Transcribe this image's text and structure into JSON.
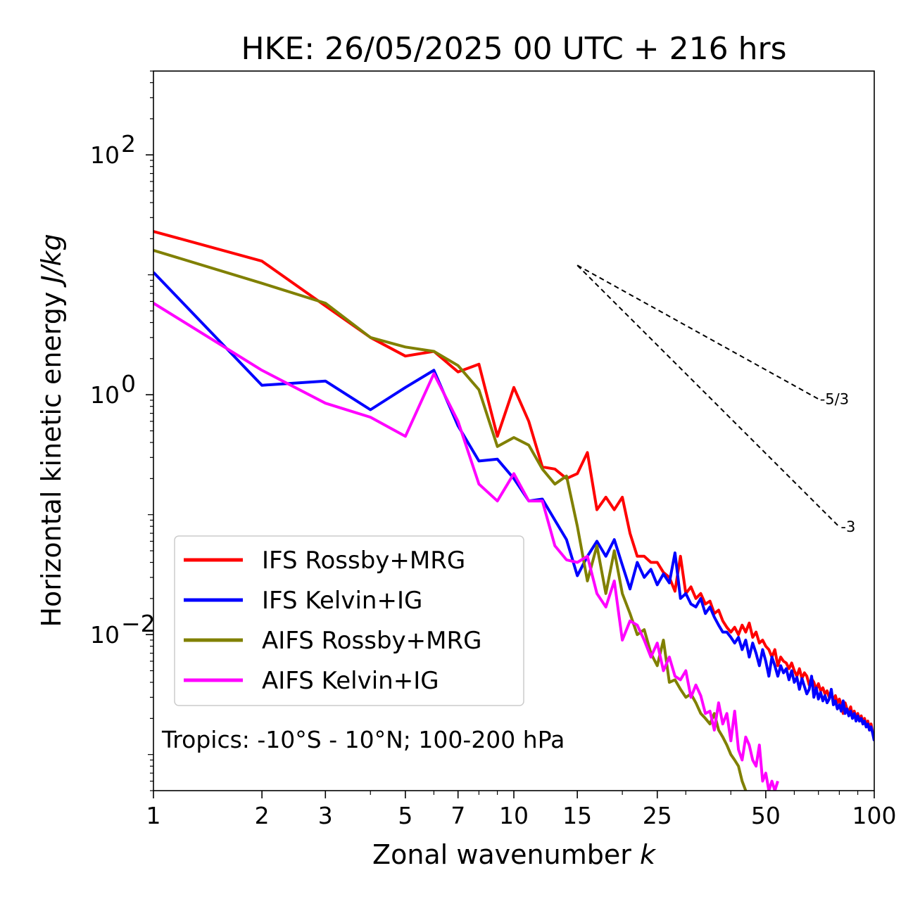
{
  "chart_data": {
    "type": "line",
    "title": "HKE: 26/05/2025 00 UTC + 216 hrs",
    "xlabel": "Zonal wavenumber",
    "xlabel_italic": "k",
    "ylabel": "Horizontal kinetic energy",
    "ylabel_italic": "J/kg",
    "xscale": "log",
    "yscale": "log",
    "xlim": [
      1,
      100
    ],
    "ylim": [
      0.0005,
      500
    ],
    "x_ticks": [
      {
        "value": 1,
        "label": "1"
      },
      {
        "value": 2,
        "label": "2"
      },
      {
        "value": 3,
        "label": "3"
      },
      {
        "value": 5,
        "label": "5"
      },
      {
        "value": 7,
        "label": "7"
      },
      {
        "value": 10,
        "label": "10"
      },
      {
        "value": 15,
        "label": "15"
      },
      {
        "value": 25,
        "label": "25"
      },
      {
        "value": 50,
        "label": "50"
      },
      {
        "value": 100,
        "label": "100"
      }
    ],
    "y_ticks": [
      {
        "value": 0.01,
        "base": "10",
        "exp": "−2"
      },
      {
        "value": 1,
        "base": "10",
        "exp": "0"
      },
      {
        "value": 100,
        "base": "10",
        "exp": "2"
      }
    ],
    "grid": false,
    "legend_position": "lower-left",
    "annotation": "Tropics: -10°S - 10°N; 100-200 hPa",
    "reference_lines": [
      {
        "label": "-5/3",
        "slope": -1.6667,
        "x_start": 15,
        "y_start": 12.0,
        "x_end": 70
      },
      {
        "label": "-3",
        "slope": -3,
        "x_start": 15,
        "y_start": 12.0,
        "x_end": 80
      }
    ],
    "series": [
      {
        "name": "IFS Rossby+MRG",
        "color": "#ff0000",
        "x": [
          1,
          2,
          3,
          4,
          5,
          6,
          7,
          8,
          9,
          10,
          11,
          12,
          13,
          14,
          15,
          16,
          17,
          18,
          19,
          20,
          21,
          22,
          23,
          24,
          25,
          26,
          27,
          28,
          29,
          30,
          31,
          32,
          33,
          34,
          35,
          36,
          37,
          38,
          39,
          40,
          41,
          42,
          43,
          44,
          45,
          46,
          47,
          48,
          49,
          50,
          51,
          52,
          53,
          54,
          55,
          56,
          57,
          58,
          59,
          60,
          61,
          62,
          63,
          64,
          65,
          66,
          67,
          68,
          69,
          70,
          71,
          72,
          73,
          74,
          75,
          76,
          77,
          78,
          79,
          80,
          81,
          82,
          83,
          84,
          85,
          86,
          87,
          88,
          89,
          90,
          91,
          92,
          93,
          94,
          95,
          96,
          97,
          98,
          99,
          100
        ],
        "y": [
          23,
          13,
          5.5,
          3.0,
          2.1,
          2.3,
          1.55,
          1.8,
          0.45,
          1.15,
          0.6,
          0.25,
          0.24,
          0.2,
          0.22,
          0.33,
          0.11,
          0.14,
          0.11,
          0.14,
          0.07,
          0.045,
          0.045,
          0.04,
          0.04,
          0.033,
          0.03,
          0.023,
          0.045,
          0.022,
          0.025,
          0.02,
          0.022,
          0.018,
          0.019,
          0.015,
          0.016,
          0.013,
          0.0115,
          0.0105,
          0.0115,
          0.01,
          0.012,
          0.0105,
          0.0125,
          0.0095,
          0.0105,
          0.0085,
          0.009,
          0.008,
          0.0075,
          0.0065,
          0.0075,
          0.0055,
          0.0065,
          0.006,
          0.0058,
          0.0052,
          0.0058,
          0.005,
          0.0045,
          0.0052,
          0.0043,
          0.0048,
          0.0045,
          0.0038,
          0.0043,
          0.004,
          0.0035,
          0.0039,
          0.0034,
          0.0036,
          0.0032,
          0.0034,
          0.003,
          0.0032,
          0.0028,
          0.0031,
          0.0027,
          0.0029,
          0.0026,
          0.0022,
          0.0027,
          0.0024,
          0.0023,
          0.0025,
          0.0021,
          0.0023,
          0.002,
          0.0022,
          0.0019,
          0.0021,
          0.0018,
          0.002,
          0.0017,
          0.0019,
          0.0016,
          0.0018,
          0.0015,
          0.0014
        ]
      },
      {
        "name": "IFS Kelvin+IG",
        "color": "#0000ff",
        "x": [
          1,
          2,
          3,
          4,
          5,
          6,
          7,
          8,
          9,
          10,
          11,
          12,
          13,
          14,
          15,
          16,
          17,
          18,
          19,
          20,
          21,
          22,
          23,
          24,
          25,
          26,
          27,
          28,
          29,
          30,
          31,
          32,
          33,
          34,
          35,
          36,
          37,
          38,
          39,
          40,
          41,
          42,
          43,
          44,
          45,
          46,
          47,
          48,
          49,
          50,
          51,
          52,
          53,
          54,
          55,
          56,
          57,
          58,
          59,
          60,
          61,
          62,
          63,
          64,
          65,
          66,
          67,
          68,
          69,
          70,
          71,
          72,
          73,
          74,
          75,
          76,
          77,
          78,
          79,
          80,
          81,
          82,
          83,
          84,
          85,
          86,
          87,
          88,
          89,
          90,
          91,
          92,
          93,
          94,
          95,
          96,
          97,
          98,
          99,
          100
        ],
        "y": [
          10.5,
          1.2,
          1.3,
          0.75,
          1.15,
          1.6,
          0.55,
          0.28,
          0.29,
          0.2,
          0.13,
          0.135,
          0.09,
          0.062,
          0.031,
          0.045,
          0.06,
          0.045,
          0.062,
          0.038,
          0.024,
          0.04,
          0.03,
          0.035,
          0.026,
          0.032,
          0.027,
          0.048,
          0.02,
          0.022,
          0.018,
          0.017,
          0.02,
          0.015,
          0.017,
          0.014,
          0.012,
          0.0105,
          0.0105,
          0.0095,
          0.0085,
          0.0095,
          0.0075,
          0.009,
          0.0065,
          0.0085,
          0.007,
          0.0055,
          0.0075,
          0.006,
          0.0045,
          0.0065,
          0.0055,
          0.0045,
          0.0055,
          0.0048,
          0.0052,
          0.0042,
          0.005,
          0.004,
          0.0044,
          0.0035,
          0.0043,
          0.0037,
          0.0032,
          0.0035,
          0.0045,
          0.003,
          0.0036,
          0.0029,
          0.0033,
          0.0028,
          0.0031,
          0.0027,
          0.0029,
          0.0035,
          0.0026,
          0.0028,
          0.0024,
          0.0026,
          0.0023,
          0.0028,
          0.0022,
          0.0024,
          0.0021,
          0.0023,
          0.002,
          0.0022,
          0.0019,
          0.0021,
          0.0019,
          0.002,
          0.0018,
          0.0019,
          0.0017,
          0.0018,
          0.0016,
          0.0017,
          0.0015,
          0.0013
        ]
      },
      {
        "name": "AIFS Rossby+MRG",
        "color": "#808000",
        "x": [
          1,
          2,
          3,
          4,
          5,
          6,
          7,
          8,
          9,
          10,
          11,
          12,
          13,
          14,
          15,
          16,
          17,
          18,
          19,
          20,
          21,
          22,
          23,
          24,
          25,
          26,
          27,
          28,
          29,
          30,
          31,
          32,
          33,
          34,
          35,
          36,
          37,
          38,
          39,
          40,
          41,
          42,
          43,
          44
        ],
        "y": [
          16,
          8.5,
          5.8,
          3.0,
          2.5,
          2.3,
          1.75,
          1.1,
          0.37,
          0.44,
          0.38,
          0.24,
          0.18,
          0.21,
          0.08,
          0.028,
          0.055,
          0.022,
          0.05,
          0.022,
          0.015,
          0.01,
          0.011,
          0.007,
          0.0055,
          0.009,
          0.004,
          0.0042,
          0.0035,
          0.003,
          0.0032,
          0.0027,
          0.0022,
          0.002,
          0.0018,
          0.0022,
          0.0016,
          0.0014,
          0.0012,
          0.001,
          0.0009,
          0.0008,
          0.0006,
          0.0005
        ]
      },
      {
        "name": "AIFS Kelvin+IG",
        "color": "#ff00ff",
        "x": [
          1,
          2,
          3,
          4,
          5,
          6,
          7,
          8,
          9,
          10,
          11,
          12,
          13,
          14,
          15,
          16,
          17,
          18,
          19,
          20,
          21,
          22,
          23,
          24,
          25,
          26,
          27,
          28,
          29,
          30,
          31,
          32,
          33,
          34,
          35,
          36,
          37,
          38,
          39,
          40,
          41,
          42,
          43,
          44,
          45,
          46,
          47,
          48,
          49,
          50,
          51,
          52,
          53,
          54
        ],
        "y": [
          5.8,
          1.6,
          0.85,
          0.65,
          0.45,
          1.5,
          0.6,
          0.18,
          0.13,
          0.22,
          0.13,
          0.13,
          0.055,
          0.042,
          0.04,
          0.045,
          0.022,
          0.017,
          0.028,
          0.009,
          0.013,
          0.012,
          0.009,
          0.0065,
          0.0085,
          0.005,
          0.0065,
          0.0045,
          0.0042,
          0.005,
          0.003,
          0.0038,
          0.0031,
          0.0022,
          0.0023,
          0.0016,
          0.0027,
          0.0018,
          0.0022,
          0.0013,
          0.0023,
          0.0011,
          0.0009,
          0.0014,
          0.0012,
          0.0009,
          0.0008,
          0.0012,
          0.0006,
          0.0007,
          0.0005,
          0.0006,
          0.0005,
          0.0006
        ]
      }
    ]
  }
}
